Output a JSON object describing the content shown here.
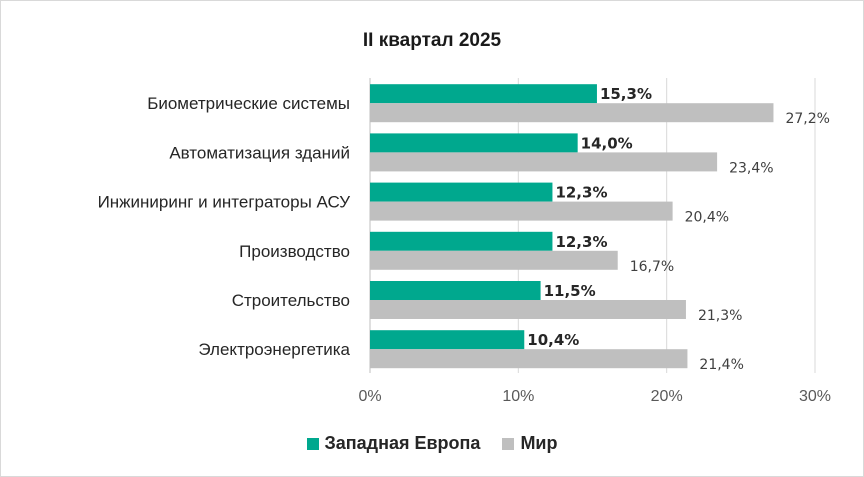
{
  "chart_data": {
    "type": "bar",
    "orientation": "horizontal",
    "title": "II квартал 2025",
    "categories": [
      "Биометрические системы",
      "Автоматизация зданий",
      "Инжиниринг и интеграторы АСУ",
      "Производство",
      "Строительство",
      "Электроэнергетика"
    ],
    "series": [
      {
        "name": "Западная Европа",
        "color": "#00a88e",
        "values": [
          15.3,
          14.0,
          12.3,
          12.3,
          11.5,
          10.4
        ],
        "labels": [
          "15,3%",
          "14,0%",
          "12,3%",
          "12,3%",
          "11,5%",
          "10,4%"
        ]
      },
      {
        "name": "Мир",
        "color": "#bfbfbf",
        "values": [
          27.2,
          23.4,
          20.4,
          16.7,
          21.3,
          21.4
        ],
        "labels": [
          "27,2%",
          "23,4%",
          "20,4%",
          "16,7%",
          "21,3%",
          "21,4%"
        ]
      }
    ],
    "xlim": [
      0,
      30
    ],
    "xticks": [
      0,
      10,
      20,
      30
    ],
    "xtick_labels": [
      "0%",
      "10%",
      "20%",
      "30%"
    ],
    "grid": true,
    "legend": "bottom"
  }
}
